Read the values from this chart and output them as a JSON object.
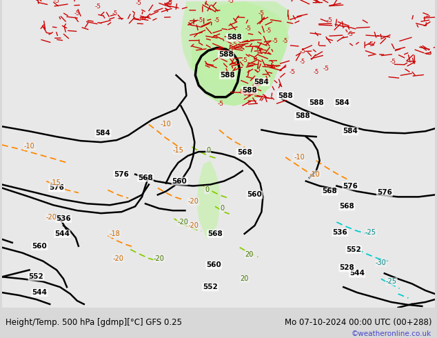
{
  "title_left": "Height/Temp. 500 hPa [gdmp][°C] GFS 0.25",
  "title_right": "Mo 07-10-2024 00:00 UTC (00+288)",
  "watermark": "©weatheronline.co.uk",
  "bg_color": "#d8d8d8",
  "map_bg": "#f0f0f0",
  "land_color": "#e8e8e8",
  "green_region_color": "#b8f0b8",
  "figsize": [
    6.34,
    4.9
  ],
  "dpi": 100,
  "title_fontsize": 8.5,
  "watermark_color": "#4444cc",
  "label_fontsize": 7
}
